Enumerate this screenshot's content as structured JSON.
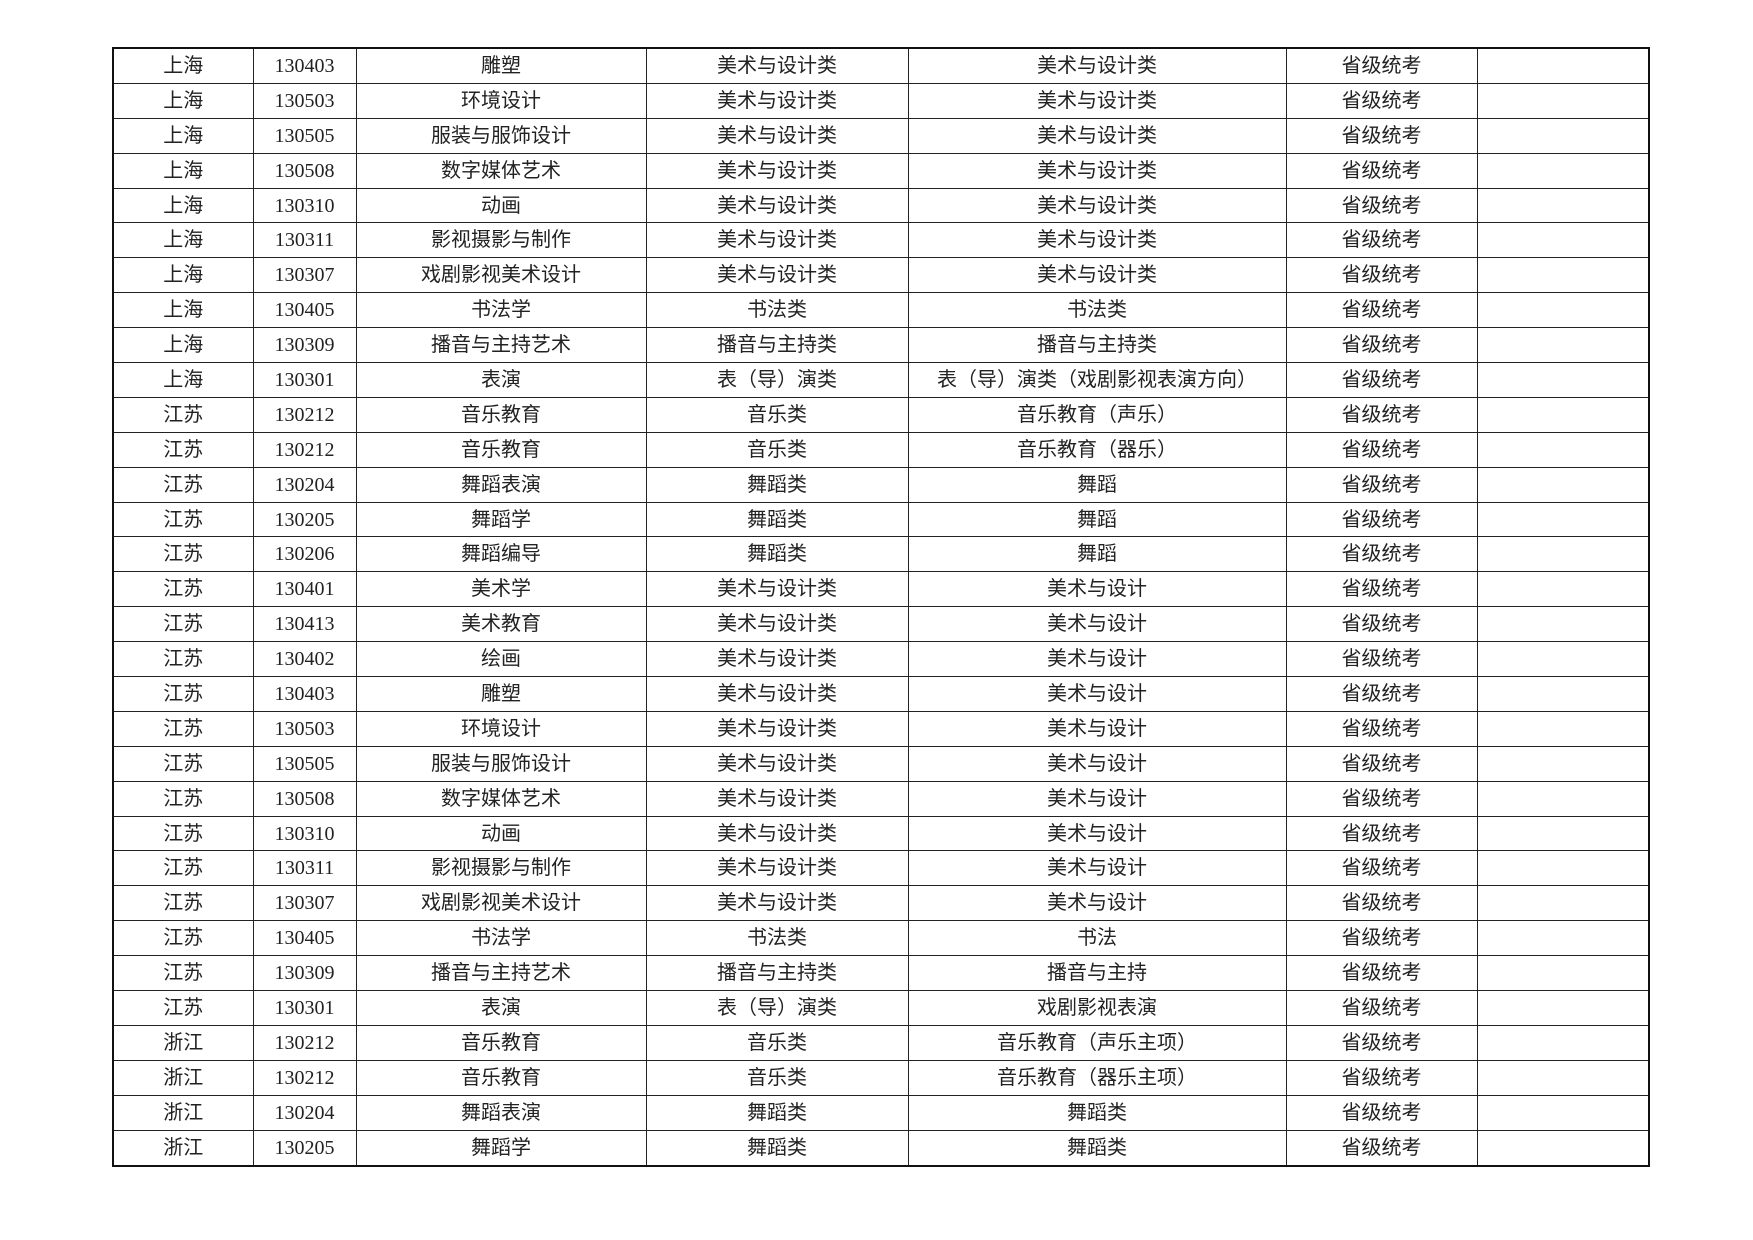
{
  "rows": [
    [
      "上海",
      "130403",
      "雕塑",
      "美术与设计类",
      "美术与设计类",
      "省级统考",
      ""
    ],
    [
      "上海",
      "130503",
      "环境设计",
      "美术与设计类",
      "美术与设计类",
      "省级统考",
      ""
    ],
    [
      "上海",
      "130505",
      "服装与服饰设计",
      "美术与设计类",
      "美术与设计类",
      "省级统考",
      ""
    ],
    [
      "上海",
      "130508",
      "数字媒体艺术",
      "美术与设计类",
      "美术与设计类",
      "省级统考",
      ""
    ],
    [
      "上海",
      "130310",
      "动画",
      "美术与设计类",
      "美术与设计类",
      "省级统考",
      ""
    ],
    [
      "上海",
      "130311",
      "影视摄影与制作",
      "美术与设计类",
      "美术与设计类",
      "省级统考",
      ""
    ],
    [
      "上海",
      "130307",
      "戏剧影视美术设计",
      "美术与设计类",
      "美术与设计类",
      "省级统考",
      ""
    ],
    [
      "上海",
      "130405",
      "书法学",
      "书法类",
      "书法类",
      "省级统考",
      ""
    ],
    [
      "上海",
      "130309",
      "播音与主持艺术",
      "播音与主持类",
      "播音与主持类",
      "省级统考",
      ""
    ],
    [
      "上海",
      "130301",
      "表演",
      "表（导）演类",
      "表（导）演类（戏剧影视表演方向）",
      "省级统考",
      ""
    ],
    [
      "江苏",
      "130212",
      "音乐教育",
      "音乐类",
      "音乐教育（声乐）",
      "省级统考",
      ""
    ],
    [
      "江苏",
      "130212",
      "音乐教育",
      "音乐类",
      "音乐教育（器乐）",
      "省级统考",
      ""
    ],
    [
      "江苏",
      "130204",
      "舞蹈表演",
      "舞蹈类",
      "舞蹈",
      "省级统考",
      ""
    ],
    [
      "江苏",
      "130205",
      "舞蹈学",
      "舞蹈类",
      "舞蹈",
      "省级统考",
      ""
    ],
    [
      "江苏",
      "130206",
      "舞蹈编导",
      "舞蹈类",
      "舞蹈",
      "省级统考",
      ""
    ],
    [
      "江苏",
      "130401",
      "美术学",
      "美术与设计类",
      "美术与设计",
      "省级统考",
      ""
    ],
    [
      "江苏",
      "130413",
      "美术教育",
      "美术与设计类",
      "美术与设计",
      "省级统考",
      ""
    ],
    [
      "江苏",
      "130402",
      "绘画",
      "美术与设计类",
      "美术与设计",
      "省级统考",
      ""
    ],
    [
      "江苏",
      "130403",
      "雕塑",
      "美术与设计类",
      "美术与设计",
      "省级统考",
      ""
    ],
    [
      "江苏",
      "130503",
      "环境设计",
      "美术与设计类",
      "美术与设计",
      "省级统考",
      ""
    ],
    [
      "江苏",
      "130505",
      "服装与服饰设计",
      "美术与设计类",
      "美术与设计",
      "省级统考",
      ""
    ],
    [
      "江苏",
      "130508",
      "数字媒体艺术",
      "美术与设计类",
      "美术与设计",
      "省级统考",
      ""
    ],
    [
      "江苏",
      "130310",
      "动画",
      "美术与设计类",
      "美术与设计",
      "省级统考",
      ""
    ],
    [
      "江苏",
      "130311",
      "影视摄影与制作",
      "美术与设计类",
      "美术与设计",
      "省级统考",
      ""
    ],
    [
      "江苏",
      "130307",
      "戏剧影视美术设计",
      "美术与设计类",
      "美术与设计",
      "省级统考",
      ""
    ],
    [
      "江苏",
      "130405",
      "书法学",
      "书法类",
      "书法",
      "省级统考",
      ""
    ],
    [
      "江苏",
      "130309",
      "播音与主持艺术",
      "播音与主持类",
      "播音与主持",
      "省级统考",
      ""
    ],
    [
      "江苏",
      "130301",
      "表演",
      "表（导）演类",
      "戏剧影视表演",
      "省级统考",
      ""
    ],
    [
      "浙江",
      "130212",
      "音乐教育",
      "音乐类",
      "音乐教育（声乐主项）",
      "省级统考",
      ""
    ],
    [
      "浙江",
      "130212",
      "音乐教育",
      "音乐类",
      "音乐教育（器乐主项）",
      "省级统考",
      ""
    ],
    [
      "浙江",
      "130204",
      "舞蹈表演",
      "舞蹈类",
      "舞蹈类",
      "省级统考",
      ""
    ],
    [
      "浙江",
      "130205",
      "舞蹈学",
      "舞蹈类",
      "舞蹈类",
      "省级统考",
      ""
    ]
  ]
}
